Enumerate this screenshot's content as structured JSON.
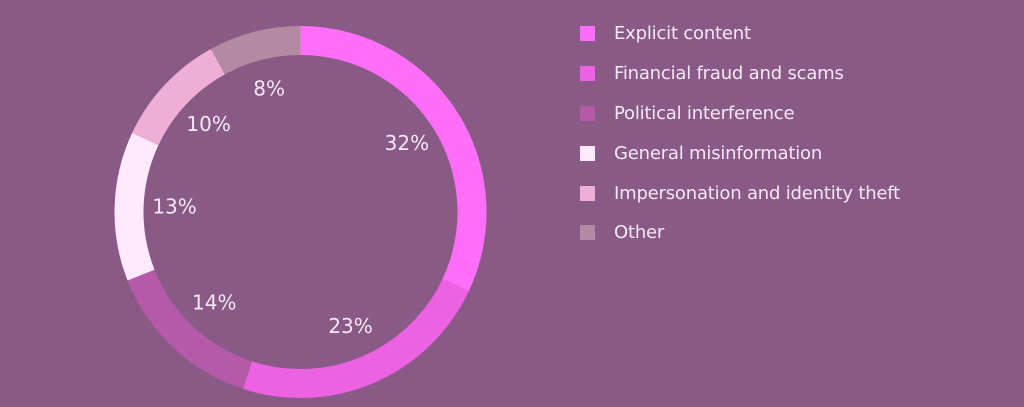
{
  "chart_data": {
    "type": "pie",
    "variant": "donut",
    "title": "",
    "categories": [
      "Explicit content",
      "Financial fraud and scams",
      "Political interference",
      "General misinformation",
      "Impersonation and identity theft",
      "Other"
    ],
    "values": [
      32,
      23,
      14,
      13,
      10,
      8
    ],
    "labels": [
      "32%",
      "23%",
      "14%",
      "13%",
      "10%",
      "8%"
    ],
    "colors": [
      "#ff6ef9",
      "#ec62e3",
      "#b45aa9",
      "#ffeafd",
      "#efaed6",
      "#b38aa2"
    ],
    "unit": "%",
    "start_angle_deg": 0,
    "direction": "clockwise",
    "legend_position": "right"
  },
  "style": {
    "background": "#885a85",
    "text_color": "#f6e8f6"
  }
}
